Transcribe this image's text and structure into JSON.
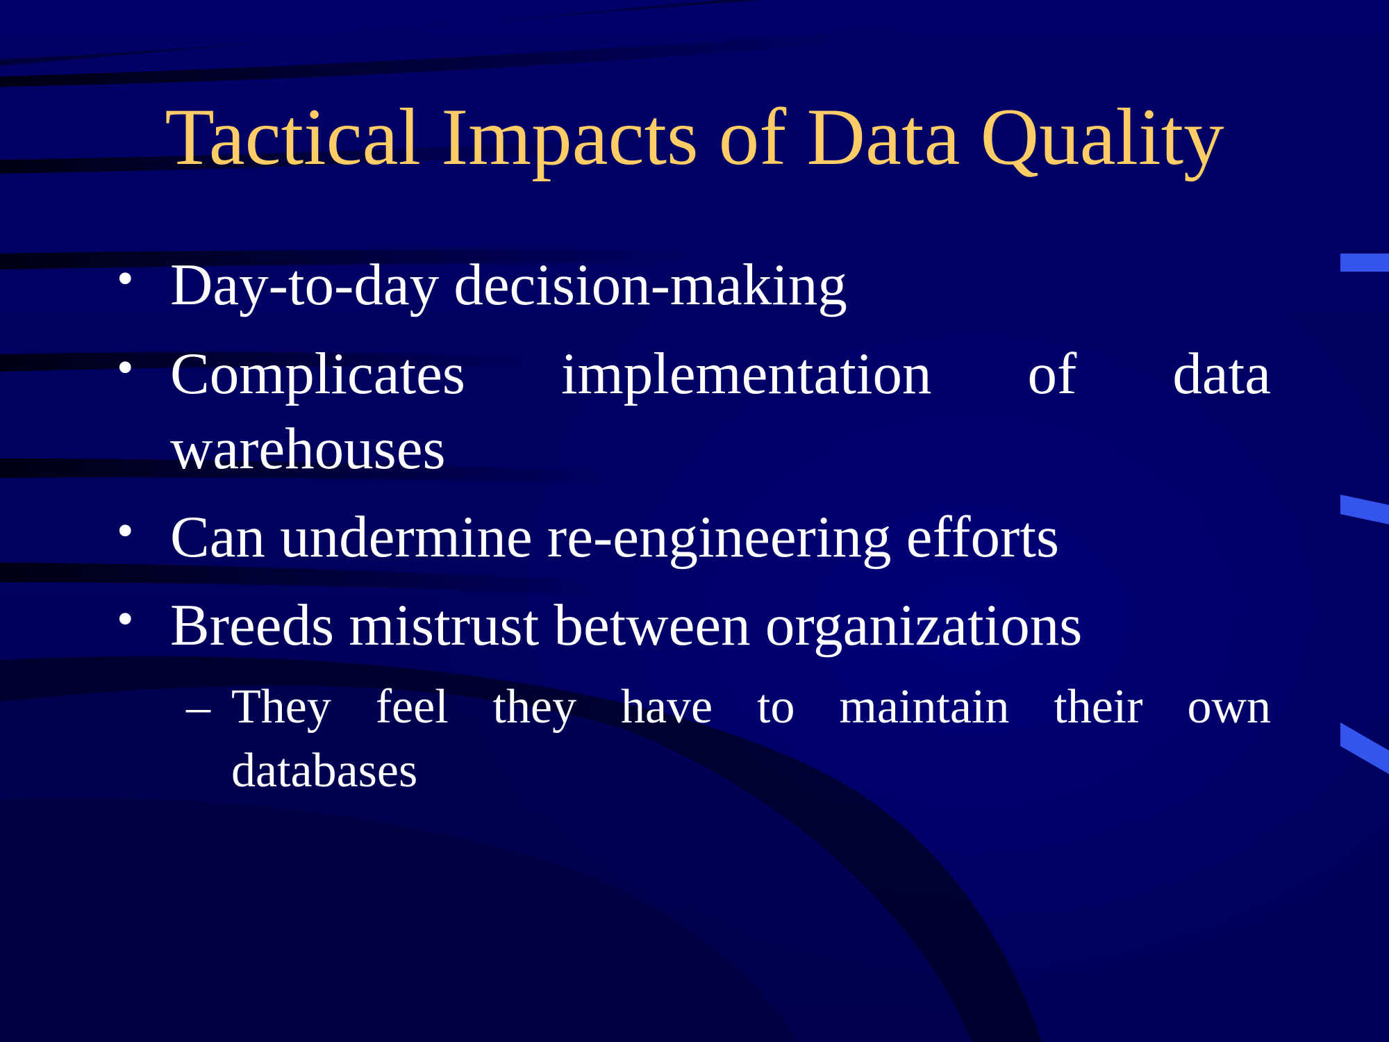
{
  "slide": {
    "title": "Tactical Impacts of Data Quality",
    "bullets": [
      {
        "marker": "•",
        "text": "Day-to-day decision-making"
      },
      {
        "marker": "•",
        "line1": "Complicates implementation of data",
        "line2": "warehouses"
      },
      {
        "marker": "•",
        "text": "Can undermine re-engineering efforts"
      },
      {
        "marker": "•",
        "text": "Breeds mistrust between organizations"
      }
    ],
    "sub_bullet": {
      "marker": "–",
      "line1": "They feel they have to maintain their own",
      "line2": "databases"
    }
  },
  "colors": {
    "background": "#000066",
    "title": "#ffcc66",
    "body_text": "#ffffff",
    "accent": "#3355ee"
  }
}
